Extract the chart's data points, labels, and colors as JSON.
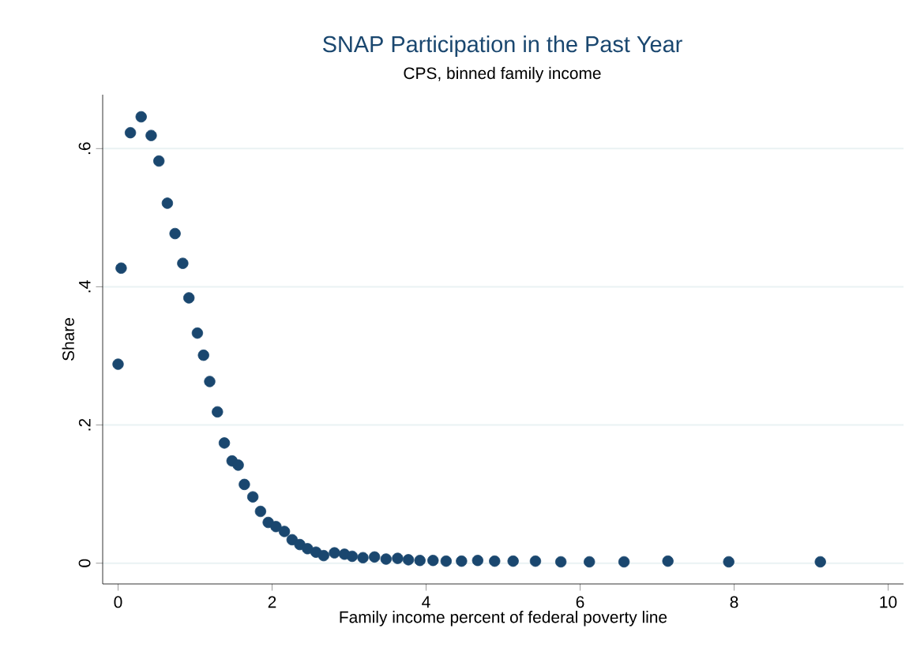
{
  "chart_data": {
    "type": "scatter",
    "title": "SNAP Participation in the Past Year",
    "subtitle": "CPS, binned family income",
    "xlabel": "Family income percent of federal poverty line",
    "ylabel": "Share",
    "series": [
      {
        "color": "#1a476f",
        "x": [
          0.0,
          0.04,
          0.16,
          0.3,
          0.43,
          0.53,
          0.64,
          0.74,
          0.84,
          0.92,
          1.03,
          1.11,
          1.19,
          1.29,
          1.38,
          1.48,
          1.56,
          1.64,
          1.75,
          1.85,
          1.95,
          2.05,
          2.16,
          2.26,
          2.36,
          2.46,
          2.57,
          2.67,
          2.81,
          2.94,
          3.04,
          3.18,
          3.33,
          3.48,
          3.63,
          3.77,
          3.92,
          4.09,
          4.26,
          4.46,
          4.67,
          4.89,
          5.13,
          5.42,
          5.75,
          6.12,
          6.57,
          7.14,
          7.93,
          9.12
        ],
        "values": [
          0.288,
          0.427,
          0.623,
          0.646,
          0.619,
          0.582,
          0.521,
          0.477,
          0.434,
          0.384,
          0.333,
          0.301,
          0.263,
          0.219,
          0.174,
          0.148,
          0.142,
          0.114,
          0.096,
          0.075,
          0.059,
          0.053,
          0.046,
          0.034,
          0.027,
          0.021,
          0.016,
          0.011,
          0.015,
          0.013,
          0.01,
          0.008,
          0.009,
          0.006,
          0.007,
          0.005,
          0.004,
          0.004,
          0.003,
          0.003,
          0.004,
          0.003,
          0.003,
          0.003,
          0.002,
          0.002,
          0.002,
          0.003,
          0.002,
          0.002
        ]
      }
    ],
    "xlim": [
      -0.2,
      10.2
    ],
    "ylim": [
      -0.03,
      0.678
    ],
    "xticks": [
      0,
      2,
      4,
      6,
      8,
      10
    ],
    "yticks": [
      {
        "value": 0,
        "label": "0"
      },
      {
        "value": 0.2,
        "label": ".2"
      },
      {
        "value": 0.4,
        "label": ".4"
      },
      {
        "value": 0.6,
        "label": ".6"
      }
    ],
    "grid": "y",
    "marker": "circle"
  }
}
